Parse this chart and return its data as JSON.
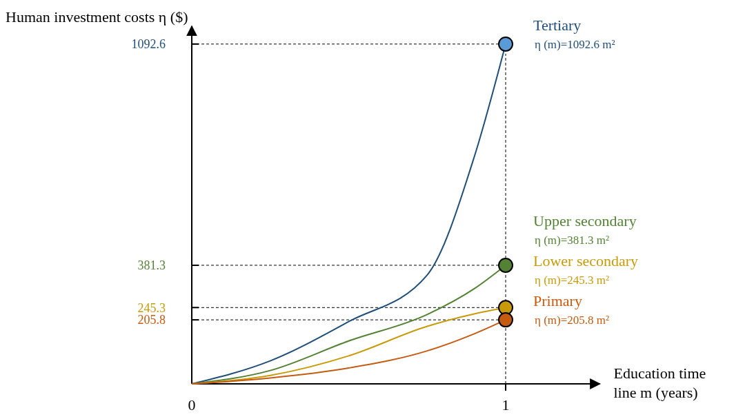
{
  "chart_data": {
    "type": "line",
    "ylabel": "Human investment costs η ($)",
    "xlabel": "Education time line m (years)",
    "xlim": [
      0,
      1.3
    ],
    "xticks": [
      0,
      1
    ],
    "ylim": [
      0,
      1150
    ],
    "yticks": [
      205.8,
      245.3,
      381.3,
      1092.6
    ],
    "series": [
      {
        "name": "Tertiary",
        "color": "#1f4e79",
        "x": [
          0,
          0.25,
          0.5,
          0.75,
          0.9,
          1
        ],
        "values": [
          0,
          74,
          200,
          350,
          730,
          1092.6
        ]
      },
      {
        "name": "Upper secondary",
        "color": "#548235",
        "x": [
          0,
          0.25,
          0.5,
          0.75,
          0.9,
          1
        ],
        "values": [
          0,
          43,
          138,
          223,
          306,
          381.3
        ]
      },
      {
        "name": "Lower secondary",
        "color": "#c89a0a",
        "x": [
          0,
          0.25,
          0.5,
          0.75,
          0.9,
          1
        ],
        "values": [
          0,
          27,
          90,
          185,
          225,
          245.3
        ]
      },
      {
        "name": "Primary",
        "color": "#c55a11",
        "x": [
          0,
          0.25,
          0.5,
          0.75,
          0.9,
          1
        ],
        "values": [
          0,
          19,
          51,
          106,
          161,
          205.8
        ]
      },
      {
        "type": "scatter",
        "x": [
          1,
          1,
          1,
          1
        ],
        "values": [
          1092.6,
          381.3,
          245.3,
          205.8
        ],
        "colors": [
          "#5b9bd5",
          "#548235",
          "#c89a0a",
          "#c55a11"
        ]
      }
    ],
    "ref_lines": [
      {
        "axis": "y",
        "value": 1092.6,
        "line_style": "dashed"
      },
      {
        "axis": "y",
        "value": 381.3,
        "line_style": "dashed"
      },
      {
        "axis": "y",
        "value": 245.3,
        "line_style": "dashed"
      },
      {
        "axis": "y",
        "value": 205.8,
        "line_style": "dashed"
      },
      {
        "axis": "x",
        "value": 1,
        "line_style": "dashed"
      }
    ],
    "annotations": [
      "η (m)=1092.6 m²",
      "η (m)=381.3 m²",
      "η (m)=245.3 m²",
      "η (m)=205.8 m²"
    ],
    "grid": false,
    "legend": false,
    "line_style": "solid"
  }
}
